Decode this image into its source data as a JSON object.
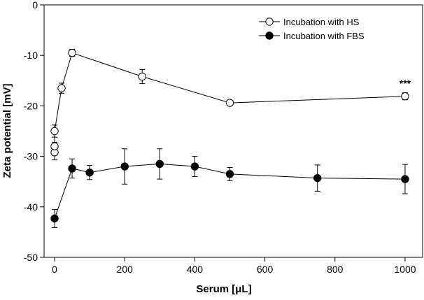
{
  "chart_data": {
    "type": "scatter",
    "title": "",
    "xlabel": "Serum [μL]",
    "ylabel": "Zeta potential [mV]",
    "xlim": [
      -30,
      1050
    ],
    "ylim": [
      -50,
      0
    ],
    "x_ticks": [
      0,
      200,
      400,
      600,
      800,
      1000
    ],
    "y_ticks": [
      0,
      -10,
      -20,
      -30,
      -40,
      -50
    ],
    "legend_position": "top-right",
    "series": [
      {
        "name": "Incubation with HS",
        "marker": "open-circle",
        "x": [
          0,
          0,
          0,
          20,
          50,
          250,
          500,
          1000
        ],
        "y": [
          -29.2,
          -28.0,
          -25.0,
          -16.5,
          -9.5,
          -14.2,
          -19.4,
          -18.1
        ],
        "err": [
          1.5,
          0.8,
          1.2,
          1.0,
          0.7,
          1.4,
          0.4,
          0.7
        ]
      },
      {
        "name": "Incubation with FBS",
        "marker": "filled-circle",
        "x": [
          0,
          50,
          100,
          200,
          300,
          400,
          500,
          750,
          1000
        ],
        "y": [
          -42.3,
          -32.4,
          -33.2,
          -32.0,
          -31.5,
          -32.0,
          -33.5,
          -34.3,
          -34.5
        ],
        "err": [
          1.8,
          1.9,
          1.4,
          3.5,
          3.0,
          2.0,
          1.3,
          2.6,
          2.9
        ]
      }
    ],
    "annotations": [
      {
        "text": "***",
        "x": 1000,
        "y": -16.2
      }
    ]
  }
}
